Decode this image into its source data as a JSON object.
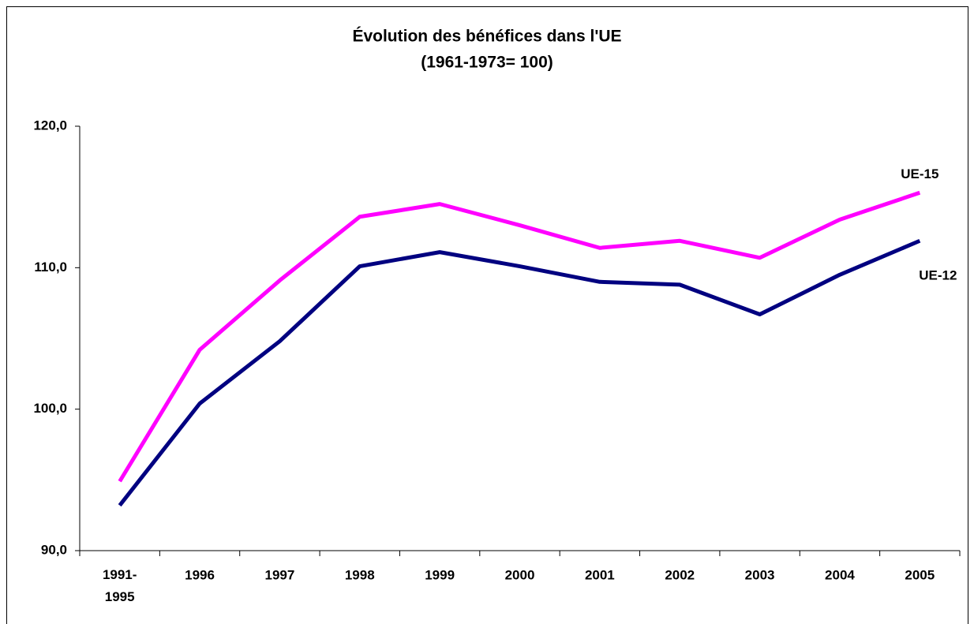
{
  "chart_data": {
    "type": "line",
    "title": "Évolution des bénéfices dans l'UE",
    "subtitle": "(1961-1973= 100)",
    "categories": [
      "1991-1995",
      "1996",
      "1997",
      "1998",
      "1999",
      "2000",
      "2001",
      "2002",
      "2003",
      "2004",
      "2005"
    ],
    "series": [
      {
        "name": "UE-15",
        "color": "#ff00ff",
        "values": [
          94.9,
          104.2,
          109.1,
          113.6,
          114.5,
          113.0,
          111.4,
          111.9,
          110.7,
          113.4,
          115.3
        ]
      },
      {
        "name": "UE-12",
        "color": "#000080",
        "values": [
          93.2,
          100.4,
          104.8,
          110.1,
          111.1,
          110.1,
          109.0,
          108.8,
          106.7,
          109.5,
          111.9
        ]
      }
    ],
    "ylim": [
      90,
      120
    ],
    "yticks": [
      {
        "value": 90,
        "label": "90,0"
      },
      {
        "value": 100,
        "label": "100,0"
      },
      {
        "value": 110,
        "label": "110,0"
      },
      {
        "value": 120,
        "label": "120,0"
      }
    ],
    "grid": false
  }
}
